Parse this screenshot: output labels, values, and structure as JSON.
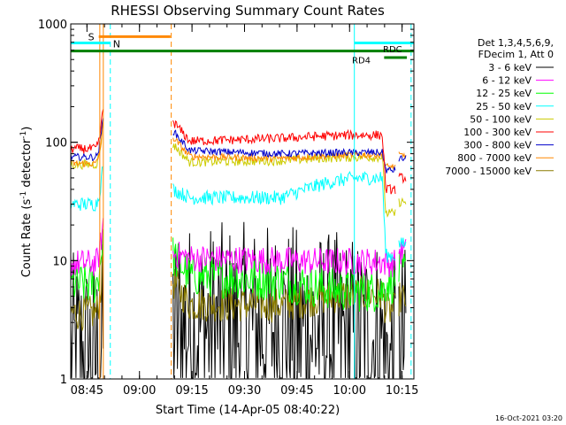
{
  "chart_data": {
    "type": "line",
    "title": "RHESSI Observing Summary Count Rates",
    "xlabel": "Start Time (14-Apr-05 08:40:22)",
    "ylabel_main": "Count Rate (s",
    "ylabel_sup1": "-1",
    "ylabel_mid": " detector",
    "ylabel_sup2": "-1",
    "ylabel_end": ")",
    "y_scale": "log",
    "ylim": [
      1,
      1000
    ],
    "xlim_minutes": [
      0,
      98
    ],
    "x_ticks": [
      {
        "label": "08:45",
        "min": 4.63
      },
      {
        "label": "09:00",
        "min": 19.63
      },
      {
        "label": "09:15",
        "min": 34.63
      },
      {
        "label": "09:30",
        "min": 49.63
      },
      {
        "label": "09:45",
        "min": 64.63
      },
      {
        "label": "10:00",
        "min": 79.63
      },
      {
        "label": "10:15",
        "min": 94.63
      }
    ],
    "y_ticks": [
      {
        "label": "1",
        "value": 1
      },
      {
        "label": "10",
        "value": 10
      },
      {
        "label": "100",
        "value": 100
      },
      {
        "label": "1000",
        "value": 1000
      }
    ],
    "legend_header": [
      "Det 1,3,4,5,6,9,",
      "FDecim 1, Att 0"
    ],
    "series": [
      {
        "name": "3 - 6 keV",
        "color": "#000000",
        "pre": 1.5,
        "posts": [
          2.7,
          2.7,
          2.7,
          2.2
        ],
        "end": 1.4,
        "noise": 0.9
      },
      {
        "name": "6 - 12 keV",
        "color": "#ff00ff",
        "pre": 9.5,
        "posts": [
          11.5,
          10.5,
          10.0,
          9.8
        ],
        "end": 9.5,
        "noise": 0.12
      },
      {
        "name": "12 - 25 keV",
        "color": "#00ff00",
        "pre": 6.3,
        "posts": [
          11.0,
          7.5,
          6.8,
          5.5
        ],
        "end": 6.5,
        "noise": 0.18
      },
      {
        "name": "25 - 50 keV",
        "color": "#00ffff",
        "pre": 30,
        "posts": [
          40,
          34,
          34,
          50
        ],
        "end": 11,
        "noise": 0.06
      },
      {
        "name": "50 - 100 keV",
        "color": "#cccc00",
        "pre": 65,
        "posts": [
          96,
          68,
          70,
          75
        ],
        "end": 25,
        "noise": 0.04
      },
      {
        "name": "100 - 300 keV",
        "color": "#ff0000",
        "pre": 88,
        "posts": [
          150,
          102,
          108,
          115
        ],
        "end": 40,
        "noise": 0.04
      },
      {
        "name": "300 - 800 keV",
        "color": "#0000cc",
        "pre": 75,
        "posts": [
          125,
          85,
          80,
          82
        ],
        "end": 58,
        "noise": 0.03
      },
      {
        "name": "800 - 7000 keV",
        "color": "#ff8800",
        "pre": 66,
        "posts": [
          110,
          76,
          73,
          78
        ],
        "end": 62,
        "noise": 0.03
      },
      {
        "name": "7000 - 15000 keV",
        "color": "#8a7a00",
        "pre": 3.6,
        "posts": [
          6.6,
          4.3,
          4.2,
          5.2
        ],
        "end": 3.8,
        "noise": 0.15
      }
    ],
    "markers": [
      {
        "label": "S",
        "color": "#ff8800",
        "level": 780,
        "start_min": 8.0,
        "end_min": 28.5
      },
      {
        "label": "N",
        "color": "#00ffff",
        "level": 690,
        "start_min": 0.0,
        "end_min": 11.3
      },
      {
        "label": "RD4",
        "color": "#008000",
        "level": 590,
        "start_min": 0.0,
        "end_min": 98.0
      },
      {
        "label": "RDC",
        "color": "#008000",
        "level": 520,
        "start_min": 89.5,
        "end_min": 96.0
      },
      {
        "label": "",
        "color": "#00ffff",
        "level": 690,
        "start_min": 81.0,
        "end_min": 98.0
      }
    ],
    "vlines": [
      {
        "min": 8.3,
        "color": "#ff8800",
        "dashed": false
      },
      {
        "min": 9.3,
        "color": "#ff8800",
        "dashed": false
      },
      {
        "min": 11.3,
        "color": "#00ffff",
        "dashed": true
      },
      {
        "min": 28.7,
        "color": "#ff8800",
        "dashed": true
      },
      {
        "min": 81.0,
        "color": "#00ffff",
        "dashed": false
      },
      {
        "min": 97.2,
        "color": "#00ffff",
        "dashed": true
      }
    ],
    "timestamp": "16-Oct-2021 03:20"
  }
}
